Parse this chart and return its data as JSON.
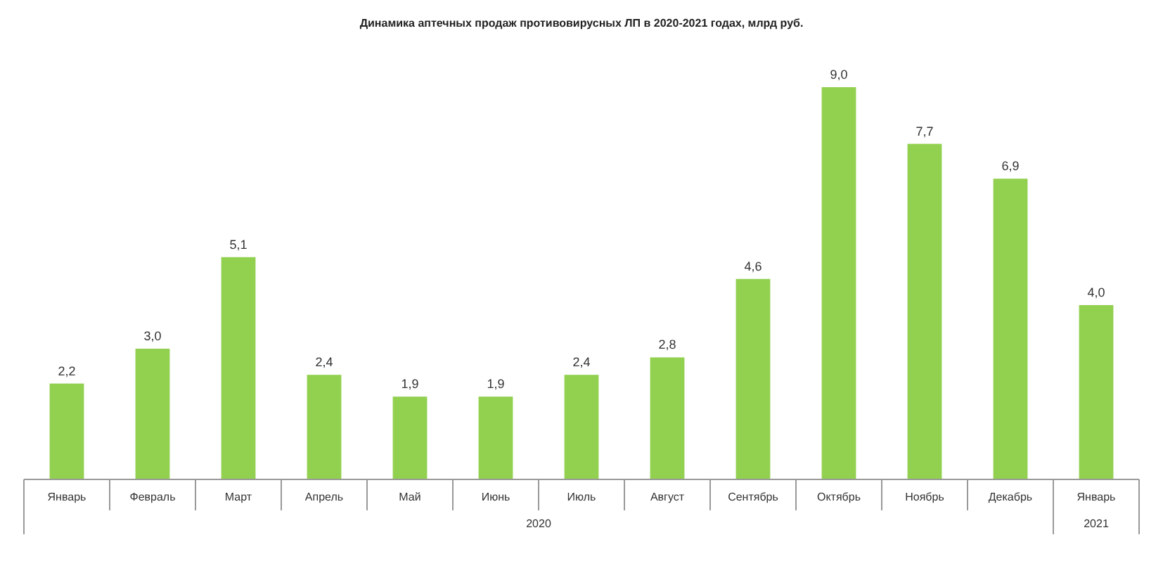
{
  "chart_data": {
    "type": "bar",
    "title": "Динамика  аптечных  продаж  противовирусных  ЛП в 2020-2021 годах, млрд руб.",
    "categories": [
      "Январь",
      "Февраль",
      "Март",
      "Апрель",
      "Май",
      "Июнь",
      "Июль",
      "Август",
      "Сентябрь",
      "Октябрь",
      "Ноябрь",
      "Декабрь",
      "Январь"
    ],
    "values": [
      2.2,
      3.0,
      5.1,
      2.4,
      1.9,
      1.9,
      2.4,
      2.8,
      4.6,
      9.0,
      7.7,
      6.9,
      4.0
    ],
    "color": "#92d050",
    "value_labels": [
      "2,2",
      "3,0",
      "5,1",
      "2,4",
      "1,9",
      "1,9",
      "2,4",
      "2,8",
      "4,6",
      "9,0",
      "7,7",
      "6,9",
      "4,0"
    ],
    "annotations": [
      "2020",
      "2021"
    ]
  }
}
